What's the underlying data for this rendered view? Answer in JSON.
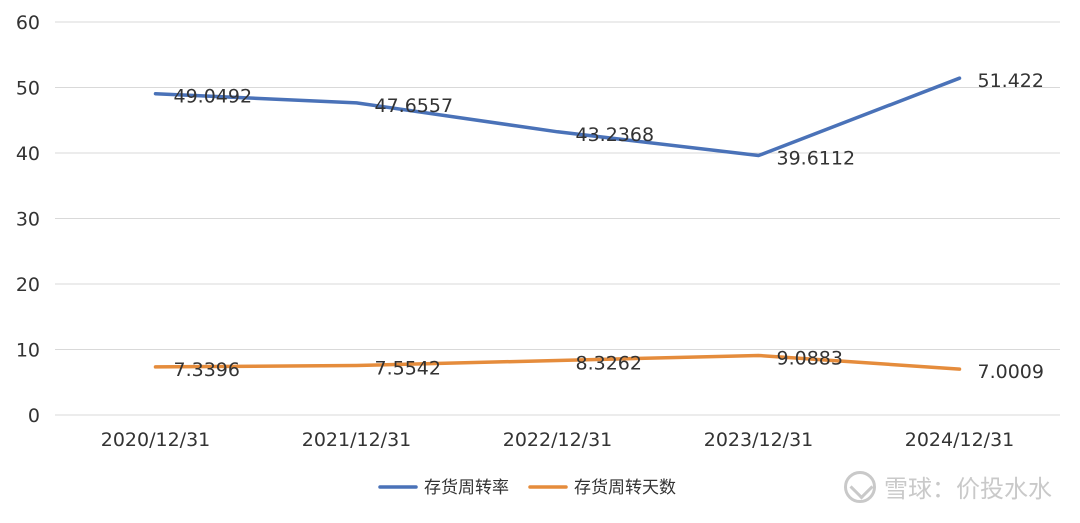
{
  "chart_data": {
    "type": "line",
    "categories": [
      "2020/12/31",
      "2021/12/31",
      "2022/12/31",
      "2023/12/31",
      "2024/12/31"
    ],
    "ylim": [
      0,
      60
    ],
    "yticks": [
      0,
      10,
      20,
      30,
      40,
      50,
      60
    ],
    "grid": true,
    "legend_position": "bottom",
    "series": [
      {
        "name": "存货周转率",
        "color": "#4a72b8",
        "values": [
          49.0492,
          47.6557,
          43.2368,
          39.6112,
          51.422
        ],
        "labels": [
          "49.0492",
          "47.6557",
          "43.2368",
          "39.6112",
          "51.422"
        ]
      },
      {
        "name": "存货周转天数",
        "color": "#e58c3c",
        "values": [
          7.3396,
          7.5542,
          8.3262,
          9.0883,
          7.0009
        ],
        "labels": [
          "7.3396",
          "7.5542",
          "8.3262",
          "9.0883",
          "7.0009"
        ]
      }
    ]
  },
  "watermark": {
    "text": "雪球：价投水水"
  }
}
